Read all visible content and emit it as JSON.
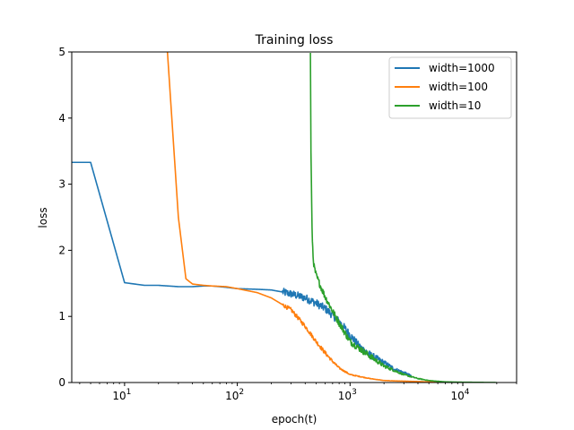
{
  "chart_data": {
    "type": "line",
    "title": "Training loss",
    "xlabel": "epoch(t)",
    "ylabel": "loss",
    "xscale": "log",
    "xlim": [
      3.4,
      30000
    ],
    "ylim": [
      0,
      5
    ],
    "yticks": [
      0,
      1,
      2,
      3,
      4,
      5
    ],
    "xticks": [
      {
        "value": 10,
        "base": "10",
        "exp": "1"
      },
      {
        "value": 100,
        "base": "10",
        "exp": "2"
      },
      {
        "value": 1000,
        "base": "10",
        "exp": "3"
      },
      {
        "value": 10000,
        "base": "10",
        "exp": "4"
      }
    ],
    "grid": false,
    "legend_position": "top-right",
    "series": [
      {
        "name": "width=1000",
        "color": "#1f77b4",
        "x": [
          3.4,
          5,
          10,
          15,
          20,
          30,
          40,
          50,
          60,
          80,
          100,
          150,
          200,
          250,
          300,
          400,
          500,
          600,
          700,
          800,
          900,
          1000,
          1200,
          1500,
          2000,
          2500,
          3000,
          3500
        ],
        "y": [
          3.33,
          3.33,
          1.51,
          1.47,
          1.47,
          1.45,
          1.45,
          1.46,
          1.46,
          1.44,
          1.42,
          1.41,
          1.4,
          1.37,
          1.34,
          1.28,
          1.2,
          1.12,
          1.02,
          0.92,
          0.82,
          0.72,
          0.55,
          0.42,
          0.3,
          0.2,
          0.15,
          0.1
        ],
        "noise": 0.06
      },
      {
        "name": "width=100",
        "color": "#ff7f0e",
        "x": [
          24,
          30,
          35,
          40,
          50,
          60,
          80,
          100,
          150,
          200,
          300,
          400,
          500,
          600,
          700,
          800,
          1000,
          1500,
          2000,
          3000,
          5000,
          8000
        ],
        "y": [
          5.0,
          2.5,
          1.57,
          1.49,
          1.47,
          1.46,
          1.45,
          1.42,
          1.36,
          1.28,
          1.1,
          0.85,
          0.62,
          0.45,
          0.32,
          0.22,
          0.12,
          0.06,
          0.03,
          0.02,
          0.01,
          0.0
        ],
        "noise": 0.03
      },
      {
        "name": "width=10",
        "color": "#2ca02c",
        "x": [
          445,
          450,
          460,
          470,
          480,
          500,
          550,
          600,
          700,
          800,
          1000,
          1500,
          2000,
          3000,
          4000,
          5000,
          7000,
          10000,
          15000,
          20000
        ],
        "y": [
          5.0,
          3.5,
          2.3,
          1.9,
          1.75,
          1.62,
          1.45,
          1.3,
          1.08,
          0.9,
          0.62,
          0.4,
          0.25,
          0.12,
          0.06,
          0.03,
          0.01,
          0.005,
          0.002,
          0.0
        ],
        "noise": 0.05
      }
    ]
  }
}
